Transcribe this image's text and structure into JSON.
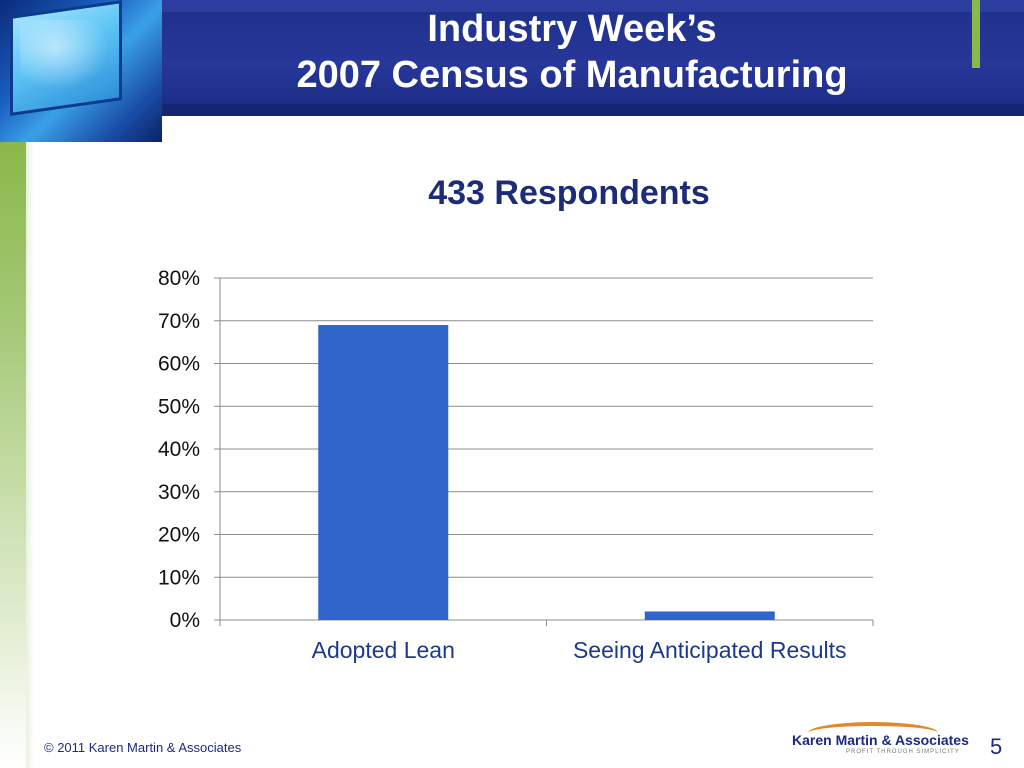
{
  "slide": {
    "title_line1": "Industry Week’s",
    "title_line2": "2007 Census of Manufacturing",
    "page_number": "5",
    "copyright": "© 2011 Karen Martin & Associates",
    "logo_name": "Karen Martin & Associates",
    "logo_tagline": "PROFIT THROUGH SIMPLICITY"
  },
  "colors": {
    "header": "#1e2f8a",
    "bar": "#3066cc",
    "accent_green": "#8ab84a",
    "accent_orange": "#e08a2a"
  },
  "chart_data": {
    "type": "bar",
    "title": "433 Respondents",
    "categories": [
      "Adopted Lean",
      "Seeing Anticipated Results"
    ],
    "values": [
      0.69,
      0.02
    ],
    "ylim": [
      0,
      0.8
    ],
    "yticks": [
      0,
      0.1,
      0.2,
      0.3,
      0.4,
      0.5,
      0.6,
      0.7,
      0.8
    ],
    "ytick_labels": [
      "0%",
      "10%",
      "20%",
      "30%",
      "40%",
      "50%",
      "60%",
      "70%",
      "80%"
    ],
    "grid": true,
    "legend": "none"
  }
}
